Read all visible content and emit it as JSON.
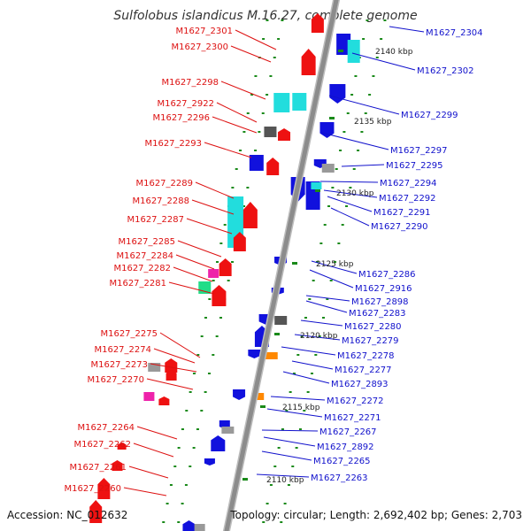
{
  "title": "Sulfolobus islandicus M.16.27, complete genome",
  "footer": {
    "accession": "Accession: NC_012632",
    "topology": "Topology: circular; Length: 2,692,402 bp; Genes: 2,703"
  },
  "colors": {
    "left_label": "#dd1111",
    "right_label": "#1111cc",
    "backbone": "#8c8c8c",
    "tick": "#1a8a1a",
    "gene_red": "#ee1111",
    "gene_blue": "#1111dd",
    "gene_cyan": "#22dddd",
    "gene_gray": "#999999",
    "gene_darkgray": "#555555",
    "gene_magenta": "#ee22aa",
    "gene_green": "#22dd88",
    "gene_orange": "#ff8800"
  },
  "scale_labels": [
    "2140 kbp",
    "2135 kbp",
    "2130 kbp",
    "2125 kbp",
    "2120 kbp",
    "2115 kbp",
    "2110 kbp"
  ],
  "left_genes": [
    "M1627_2301",
    "M1627_2300",
    "M1627_2298",
    "M1627_2922",
    "M1627_2296",
    "M1627_2293",
    "M1627_2289",
    "M1627_2288",
    "M1627_2287",
    "M1627_2285",
    "M1627_2284",
    "M1627_2282",
    "M1627_2281",
    "M1627_2275",
    "M1627_2274",
    "M1627_2273",
    "M1627_2270",
    "M1627_2264",
    "M1627_2262",
    "M1627_2261",
    "M1627_2260"
  ],
  "right_genes": [
    "M1627_2304",
    "M1627_2302",
    "M1627_2299",
    "M1627_2297",
    "M1627_2295",
    "M1627_2294",
    "M1627_2292",
    "M1627_2291",
    "M1627_2290",
    "M1627_2286",
    "M1627_2916",
    "M1627_2898",
    "M1627_2283",
    "M1627_2280",
    "M1627_2279",
    "M1627_2278",
    "M1627_2277",
    "M1627_2893",
    "M1627_2272",
    "M1627_2271",
    "M1627_2267",
    "M1627_2892",
    "M1627_2265",
    "M1627_2263"
  ]
}
